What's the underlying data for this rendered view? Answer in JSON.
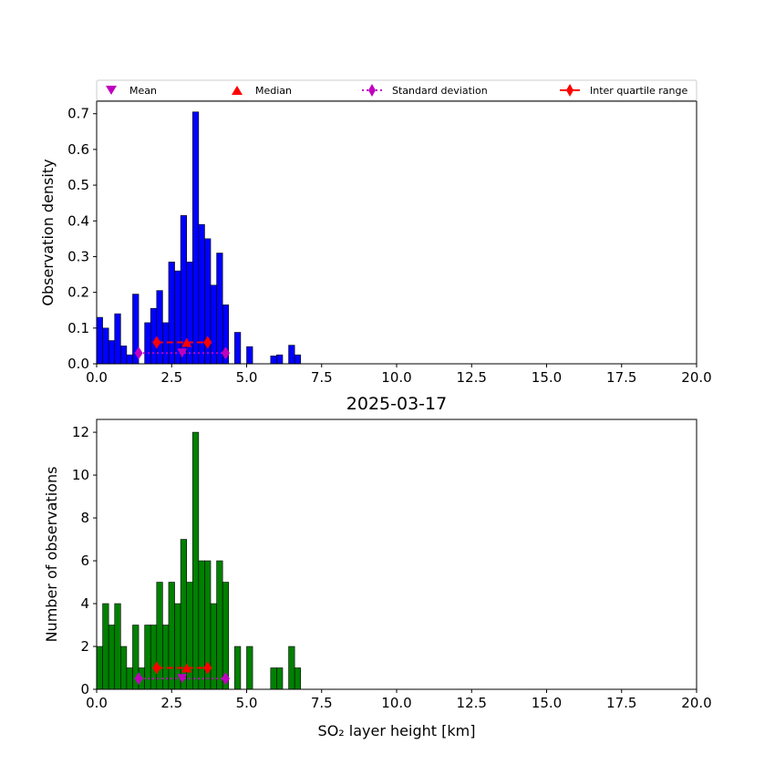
{
  "legend": {
    "mean": "Mean",
    "median": "Median",
    "std": "Standard deviation",
    "iqr": "Inter quartile range"
  },
  "date_title": "2025-03-17",
  "colors": {
    "density_bar": "#0000ff",
    "count_bar": "#008000",
    "mean_marker": "#bf00bf",
    "iqr": "#ff0000"
  },
  "chart_data": [
    {
      "type": "bar",
      "title": "",
      "xlabel": "",
      "ylabel": "Observation density",
      "xlim": [
        0,
        20
      ],
      "ylim": [
        0,
        0.735
      ],
      "bin_width": 0.2,
      "xticks": [
        "0.0",
        "2.5",
        "5.0",
        "7.5",
        "10.0",
        "12.5",
        "15.0",
        "17.5",
        "20.0"
      ],
      "yticks": [
        "0.0",
        "0.1",
        "0.2",
        "0.3",
        "0.4",
        "0.5",
        "0.6",
        "0.7"
      ],
      "bins": [
        {
          "x": 0.0,
          "y": 0.13
        },
        {
          "x": 0.2,
          "y": 0.1
        },
        {
          "x": 0.4,
          "y": 0.065
        },
        {
          "x": 0.6,
          "y": 0.14
        },
        {
          "x": 0.8,
          "y": 0.05
        },
        {
          "x": 1.0,
          "y": 0.025
        },
        {
          "x": 1.2,
          "y": 0.195
        },
        {
          "x": 1.6,
          "y": 0.115
        },
        {
          "x": 1.8,
          "y": 0.155
        },
        {
          "x": 2.0,
          "y": 0.205
        },
        {
          "x": 2.2,
          "y": 0.115
        },
        {
          "x": 2.4,
          "y": 0.285
        },
        {
          "x": 2.6,
          "y": 0.26
        },
        {
          "x": 2.8,
          "y": 0.415
        },
        {
          "x": 3.0,
          "y": 0.285
        },
        {
          "x": 3.2,
          "y": 0.705
        },
        {
          "x": 3.4,
          "y": 0.39
        },
        {
          "x": 3.6,
          "y": 0.35
        },
        {
          "x": 3.8,
          "y": 0.22
        },
        {
          "x": 4.0,
          "y": 0.31
        },
        {
          "x": 4.2,
          "y": 0.165
        },
        {
          "x": 4.6,
          "y": 0.088
        },
        {
          "x": 5.0,
          "y": 0.048
        },
        {
          "x": 5.8,
          "y": 0.022
        },
        {
          "x": 6.0,
          "y": 0.025
        },
        {
          "x": 6.4,
          "y": 0.052
        },
        {
          "x": 6.6,
          "y": 0.025
        }
      ],
      "stats": {
        "mean": 2.85,
        "median": 3.0,
        "std_range": [
          1.4,
          4.3
        ],
        "iqr_range": [
          2.0,
          3.7
        ],
        "std_y": 0.03,
        "iqr_y": 0.06
      }
    },
    {
      "type": "bar",
      "title": "2025-03-17",
      "xlabel": "SO₂ layer height [km]",
      "ylabel": "Number of observations",
      "xlim": [
        0,
        20
      ],
      "ylim": [
        0,
        12.6
      ],
      "bin_width": 0.2,
      "xticks": [
        "0.0",
        "2.5",
        "5.0",
        "7.5",
        "10.0",
        "12.5",
        "15.0",
        "17.5",
        "20.0"
      ],
      "yticks": [
        "0",
        "2",
        "4",
        "6",
        "8",
        "10",
        "12"
      ],
      "bins": [
        {
          "x": 0.0,
          "y": 2
        },
        {
          "x": 0.2,
          "y": 4
        },
        {
          "x": 0.4,
          "y": 3
        },
        {
          "x": 0.6,
          "y": 4
        },
        {
          "x": 0.8,
          "y": 2
        },
        {
          "x": 1.0,
          "y": 1
        },
        {
          "x": 1.2,
          "y": 3
        },
        {
          "x": 1.4,
          "y": 1
        },
        {
          "x": 1.6,
          "y": 3
        },
        {
          "x": 1.8,
          "y": 3
        },
        {
          "x": 2.0,
          "y": 5
        },
        {
          "x": 2.2,
          "y": 3
        },
        {
          "x": 2.4,
          "y": 5
        },
        {
          "x": 2.6,
          "y": 4
        },
        {
          "x": 2.8,
          "y": 7
        },
        {
          "x": 3.0,
          "y": 5
        },
        {
          "x": 3.2,
          "y": 12
        },
        {
          "x": 3.4,
          "y": 6
        },
        {
          "x": 3.6,
          "y": 6
        },
        {
          "x": 3.8,
          "y": 4
        },
        {
          "x": 4.0,
          "y": 6
        },
        {
          "x": 4.2,
          "y": 5
        },
        {
          "x": 4.6,
          "y": 2
        },
        {
          "x": 5.0,
          "y": 2
        },
        {
          "x": 5.8,
          "y": 1
        },
        {
          "x": 6.0,
          "y": 1
        },
        {
          "x": 6.4,
          "y": 2
        },
        {
          "x": 6.6,
          "y": 1
        }
      ],
      "stats": {
        "mean": 2.85,
        "median": 3.0,
        "std_range": [
          1.4,
          4.3
        ],
        "iqr_range": [
          2.0,
          3.7
        ],
        "std_y": 0.5,
        "iqr_y": 1.0
      }
    }
  ]
}
